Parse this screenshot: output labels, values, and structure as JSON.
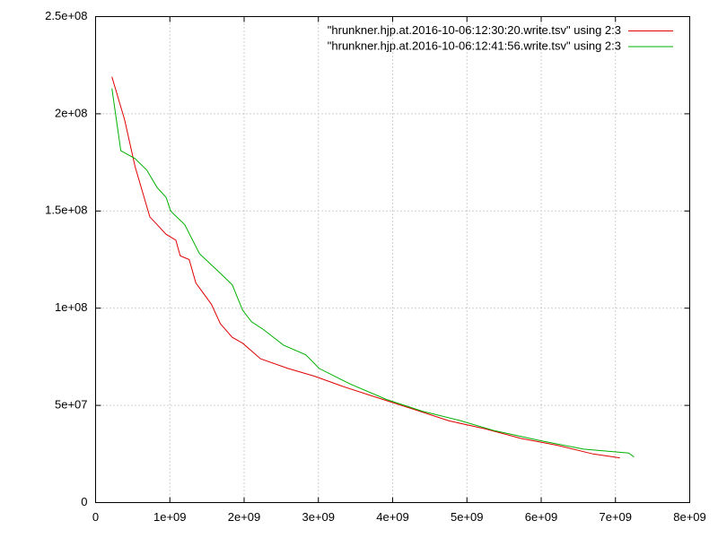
{
  "chart_data": {
    "type": "line",
    "series": [
      {
        "name": "\"hrunkner.hjp.at.2016-10-06:12:30:20.write.tsv\" using 2:3",
        "color": "#e00000",
        "x": [
          220000000,
          390000000,
          530000000,
          730000000,
          950000000,
          1080000000,
          1140000000,
          1260000000,
          1350000000,
          1560000000,
          1680000000,
          1840000000,
          1980000000,
          2220000000,
          2590000000,
          2950000000,
          3310000000,
          3790000000,
          4280000000,
          4760000000,
          5240000000,
          5730000000,
          6210000000,
          6700000000,
          7060000000
        ],
        "values": [
          219000000,
          197000000,
          173000000,
          147000000,
          138000000,
          135000000,
          127000000,
          125000000,
          113000000,
          102000000,
          92000000,
          85000000,
          82000000,
          74000000,
          69000000,
          65000000,
          60000000,
          54000000,
          48000000,
          42000000,
          38000000,
          33000000,
          29500000,
          25000000,
          23000000
        ]
      },
      {
        "name": "\"hrunkner.hjp.at.2016-10-06:12:41:56.write.tsv\" using 2:3",
        "color": "#00b000",
        "x": [
          220000000,
          340000000,
          530000000,
          690000000,
          830000000,
          950000000,
          1010000000,
          1200000000,
          1400000000,
          1680000000,
          1840000000,
          1980000000,
          2100000000,
          2260000000,
          2530000000,
          2830000000,
          3010000000,
          3430000000,
          3920000000,
          4400000000,
          4880000000,
          5370000000,
          5970000000,
          6570000000,
          7180000000,
          7250000000
        ],
        "values": [
          213000000,
          181000000,
          177000000,
          171000000,
          162000000,
          157000000,
          150000000,
          143000000,
          128000000,
          118000000,
          112000000,
          99000000,
          93000000,
          89000000,
          81000000,
          76000000,
          69000000,
          61000000,
          53000000,
          47000000,
          42500000,
          37000000,
          32000000,
          27500000,
          25500000,
          23500000
        ]
      }
    ],
    "xlim": [
      0,
      8000000000
    ],
    "xticks": [
      0,
      {
        "value": 1000000000,
        "label": "1e+09"
      },
      {
        "value": 2000000000,
        "label": "2e+09"
      },
      {
        "value": 3000000000,
        "label": "3e+09"
      },
      {
        "value": 4000000000,
        "label": "4e+09"
      },
      {
        "value": 5000000000,
        "label": "5e+09"
      },
      {
        "value": 6000000000,
        "label": "6e+09"
      },
      {
        "value": 7000000000,
        "label": "7e+09"
      },
      {
        "value": 8000000000,
        "label": "8e+09"
      }
    ],
    "ylim": [
      0,
      250000000
    ],
    "yticks": [
      0,
      {
        "value": 50000000,
        "label": "5e+07"
      },
      {
        "value": 100000000,
        "label": "1e+08"
      },
      {
        "value": 150000000,
        "label": "1.5e+08"
      },
      {
        "value": 200000000,
        "label": "2e+08"
      },
      {
        "value": 250000000,
        "label": "2.5e+08"
      }
    ],
    "grid": true,
    "legend": "top-right"
  }
}
